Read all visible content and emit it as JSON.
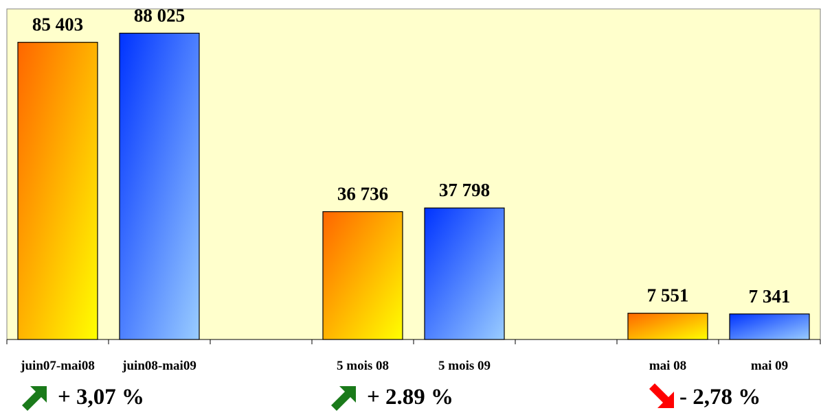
{
  "chart_data": {
    "type": "bar",
    "categories": [
      "juin07-mai08",
      "juin08-mai09",
      "",
      "5 mois 08",
      "5 mois 09",
      "",
      "mai 08",
      "mai 09"
    ],
    "values": [
      85403,
      88025,
      null,
      36736,
      37798,
      null,
      7551,
      7341
    ],
    "value_labels": [
      "85 403",
      "88 025",
      "",
      "36 736",
      "37 798",
      "",
      "7 551",
      "7 341"
    ],
    "bar_styles": [
      "orange",
      "blue",
      "",
      "orange",
      "blue",
      "",
      "orange",
      "blue"
    ],
    "ylim": [
      0,
      95000
    ],
    "grid": false,
    "legend": "none",
    "title": "",
    "xlabel": "",
    "ylabel": ""
  },
  "changes": [
    {
      "label": "+ 3,07 %",
      "direction": "up",
      "icon": "up-right-arrow-icon"
    },
    {
      "label": "+ 2.89 %",
      "direction": "up",
      "icon": "up-right-arrow-icon"
    },
    {
      "label": "- 2,78 %",
      "direction": "down",
      "icon": "down-right-arrow-icon"
    }
  ],
  "colors": {
    "plot_background": "#ffffcc",
    "orange_top": "#ff6600",
    "orange_bottom": "#ffff00",
    "blue_top": "#0033ff",
    "blue_bottom": "#99ccff",
    "arrow_up": "#1a7a1a",
    "arrow_down": "#ff0000"
  }
}
